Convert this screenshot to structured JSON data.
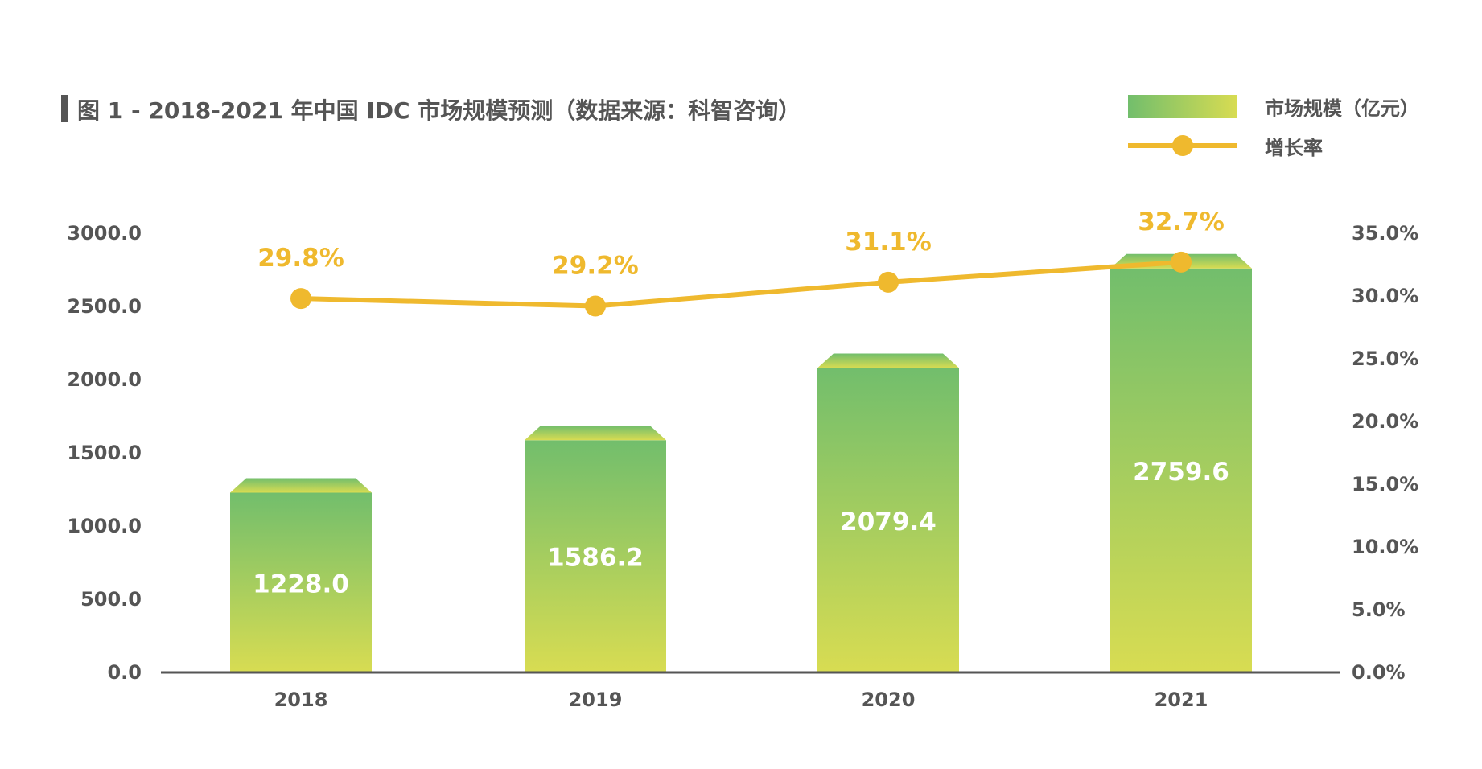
{
  "title": "图 1 - 2018-2021 年中国 IDC 市场规模预测（数据来源：科智咨询）",
  "colors": {
    "bar_top": "#72be6c",
    "bar_bottom": "#d8dc52",
    "line": "#efb92e",
    "axis": "#555555",
    "text": "#555555"
  },
  "chart_data": {
    "type": "bar",
    "categories": [
      "2018",
      "2019",
      "2020",
      "2021"
    ],
    "series": [
      {
        "name": "市场规模（亿元）",
        "type": "bar",
        "axis": "left",
        "values": [
          1228.0,
          1586.2,
          2079.4,
          2759.6
        ],
        "labels": [
          "1228.0",
          "1586.2",
          "2079.4",
          "2759.6"
        ]
      },
      {
        "name": "增长率",
        "type": "line",
        "axis": "right",
        "values": [
          29.8,
          29.2,
          31.1,
          32.7
        ],
        "labels": [
          "29.8%",
          "29.2%",
          "31.1%",
          "32.7%"
        ]
      }
    ],
    "y_left": {
      "lim": [
        0,
        3000
      ],
      "ticks": [
        "0.0",
        "500.0",
        "1000.0",
        "1500.0",
        "2000.0",
        "2500.0",
        "3000.0"
      ]
    },
    "y_right": {
      "lim": [
        0,
        35
      ],
      "ticks": [
        "0.0%",
        "5.0%",
        "10.0%",
        "15.0%",
        "20.0%",
        "25.0%",
        "30.0%",
        "35.0%"
      ]
    },
    "grid": false,
    "legend": "top-right"
  }
}
